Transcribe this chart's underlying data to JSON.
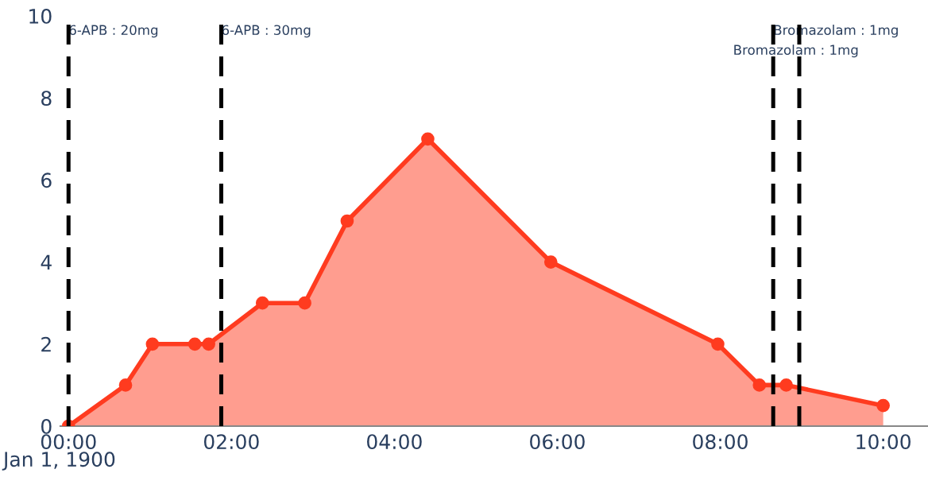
{
  "chart_data": {
    "type": "area",
    "x": [
      0,
      0.7,
      1.03,
      1.55,
      1.72,
      2.38,
      2.9,
      3.42,
      4.41,
      5.92,
      7.97,
      8.48,
      8.81,
      10
    ],
    "series": [
      {
        "color": "#ff3b1f",
        "values": [
          0,
          1,
          2,
          2,
          2,
          3,
          3,
          5,
          7,
          4,
          2,
          1,
          1,
          0.5
        ]
      }
    ],
    "xlim": [
      -0.1,
      10.55
    ],
    "xticks": [
      {
        "value": 0,
        "label": "00:00"
      },
      {
        "value": 2,
        "label": "02:00"
      },
      {
        "value": 4,
        "label": "04:00"
      },
      {
        "value": 6,
        "label": "06:00"
      },
      {
        "value": 8,
        "label": "08:00"
      },
      {
        "value": 10,
        "label": "10:00"
      }
    ],
    "ylim": [
      0,
      10
    ],
    "yticks": [
      0,
      2,
      4,
      6,
      8,
      10
    ],
    "ref_lines": [
      {
        "axis": "x",
        "value": 0,
        "line_style": "dashed",
        "color": "#000000"
      },
      {
        "axis": "x",
        "value": 1.875,
        "line_style": "dashed",
        "color": "#000000"
      },
      {
        "axis": "x",
        "value": 8.65,
        "line_style": "dashed",
        "color": "#000000"
      },
      {
        "axis": "x",
        "value": 8.97,
        "line_style": "dashed",
        "color": "#000000"
      }
    ],
    "annotations": [
      {
        "text": "6-APB : 20mg",
        "x": 0,
        "y": 10
      },
      {
        "text": "6-APB : 30mg",
        "x": 1.875,
        "y": 10
      },
      {
        "text": "Bromazolam : 1mg",
        "x": 8.65,
        "y": 10
      },
      {
        "text": "Bromazolam : 1mg",
        "x": 8.97,
        "y": 10
      },
      "Jan 1, 1900"
    ],
    "marker": "circle",
    "grid": false,
    "legend": false
  }
}
